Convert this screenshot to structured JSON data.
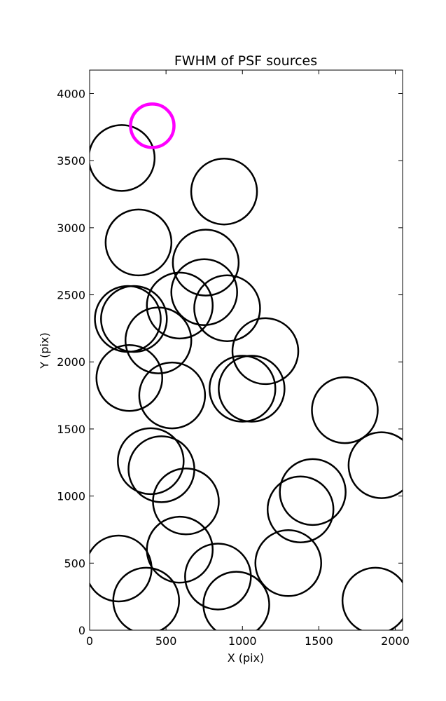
{
  "chart_data": {
    "type": "scatter",
    "title": "FWHM of PSF sources",
    "xlabel": "X (pix)",
    "ylabel": "Y (pix)",
    "xlim": [
      0,
      2048
    ],
    "ylim": [
      0,
      4175
    ],
    "xticks": [
      "0",
      "500",
      "1000",
      "1500",
      "2000"
    ],
    "yticks": [
      "0",
      "500",
      "1000",
      "1500",
      "2000",
      "2500",
      "3000",
      "3500",
      "4000"
    ],
    "grid": false,
    "series": [
      {
        "color": "#000000",
        "marker": "open-circle",
        "points": [
          {
            "x": 210,
            "y": 3520
          },
          {
            "x": 880,
            "y": 3270
          },
          {
            "x": 320,
            "y": 2890
          },
          {
            "x": 760,
            "y": 2740
          },
          {
            "x": 590,
            "y": 2420
          },
          {
            "x": 750,
            "y": 2520
          },
          {
            "x": 900,
            "y": 2400
          },
          {
            "x": 250,
            "y": 2320
          },
          {
            "x": 290,
            "y": 2320
          },
          {
            "x": 450,
            "y": 2160
          },
          {
            "x": 1150,
            "y": 2080
          },
          {
            "x": 260,
            "y": 1880
          },
          {
            "x": 540,
            "y": 1750
          },
          {
            "x": 1000,
            "y": 1800
          },
          {
            "x": 1060,
            "y": 1800
          },
          {
            "x": 1670,
            "y": 1640
          },
          {
            "x": 1910,
            "y": 1230
          },
          {
            "x": 400,
            "y": 1260
          },
          {
            "x": 470,
            "y": 1200
          },
          {
            "x": 630,
            "y": 960
          },
          {
            "x": 1460,
            "y": 1030
          },
          {
            "x": 1380,
            "y": 900
          },
          {
            "x": 590,
            "y": 600
          },
          {
            "x": 190,
            "y": 460
          },
          {
            "x": 840,
            "y": 400
          },
          {
            "x": 1300,
            "y": 500
          },
          {
            "x": 370,
            "y": 220
          },
          {
            "x": 960,
            "y": 190
          },
          {
            "x": 1870,
            "y": 220
          }
        ]
      },
      {
        "color": "#ff00ff",
        "marker": "open-circle",
        "points": [
          {
            "x": 410,
            "y": 3760
          }
        ]
      }
    ]
  }
}
